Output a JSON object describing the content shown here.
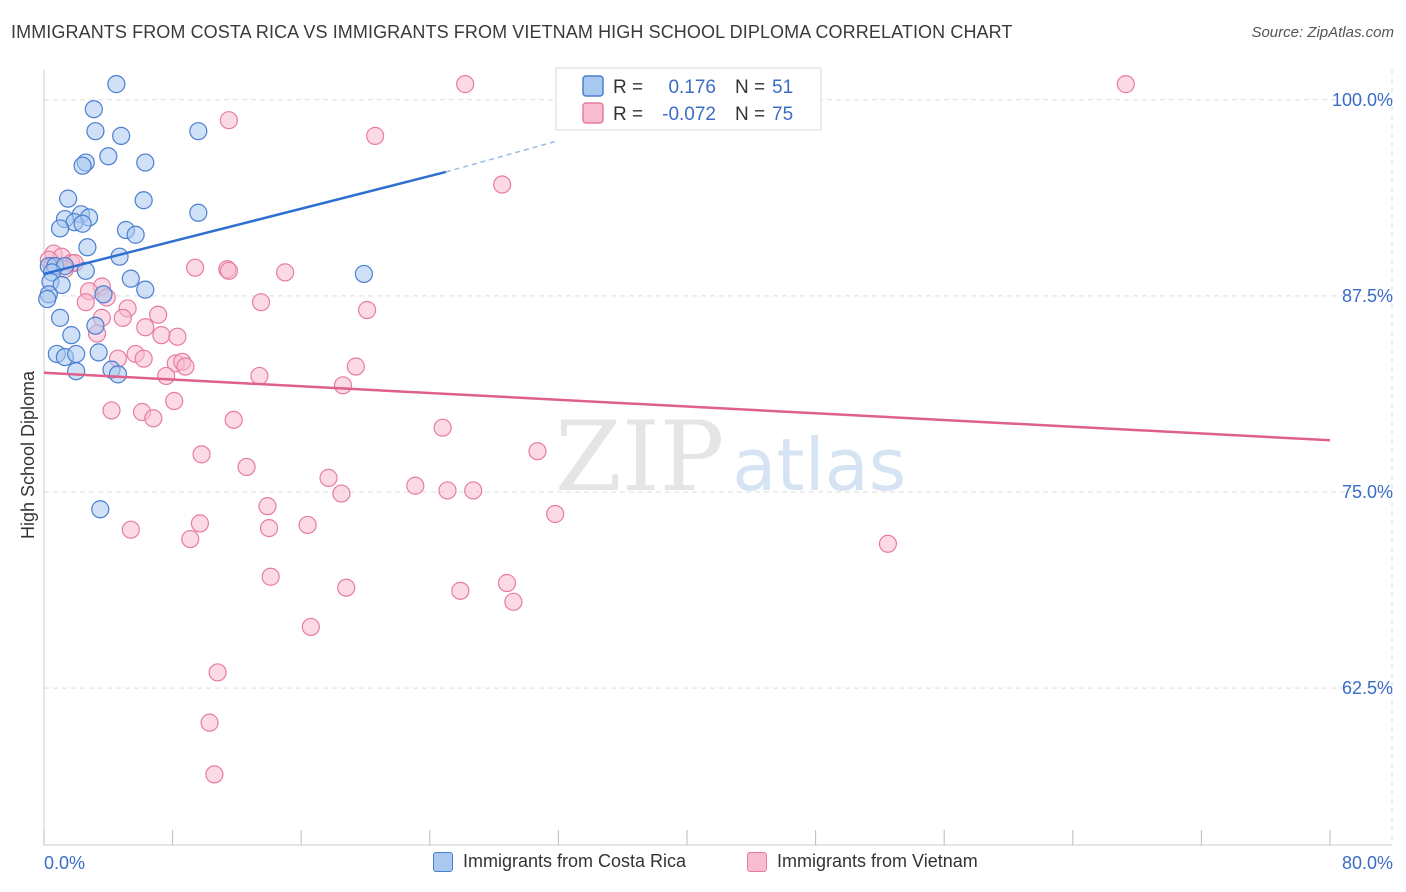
{
  "chart_data": {
    "type": "scatter",
    "title": "IMMIGRANTS FROM COSTA RICA VS IMMIGRANTS FROM VIETNAM HIGH SCHOOL DIPLOMA CORRELATION CHART",
    "source": "Source: ZipAtlas.com",
    "ylabel": "High School Diploma",
    "xlabel": "",
    "xlim": [
      0,
      80
    ],
    "ylim": [
      52.5,
      101.9
    ],
    "x_tick_labels": [
      "0.0%",
      "80.0%"
    ],
    "y_ticks": [
      100.0,
      87.5,
      75.0,
      62.5
    ],
    "y_tick_labels": [
      "100.0%",
      "87.5%",
      "75.0%",
      "62.5%"
    ],
    "watermark": "ZIPatlas",
    "legend": [
      {
        "label": "Immigrants from Costa Rica",
        "r_label": "R =",
        "r_value": "0.176",
        "n_label": "N =",
        "n_value": "51"
      },
      {
        "label": "Immigrants from Vietnam",
        "r_label": "R =",
        "r_value": "-0.072",
        "n_label": "N =",
        "n_value": "75"
      }
    ],
    "colors": {
      "costa_rica_fill": "#a9c8f0",
      "costa_rica_stroke": "#4a7fd0",
      "costa_rica_line": "#2e6fd0",
      "vietnam_fill": "#f8bcd0",
      "vietnam_stroke": "#e87ca0",
      "vietnam_line": "#e0608c",
      "tick_label": "#3b6cc6",
      "grid": "#dddddd"
    },
    "series": [
      {
        "name": "Immigrants from Costa Rica",
        "trend": {
          "x": [
            0.0,
            25.0
          ],
          "y": [
            88.9,
            95.4
          ],
          "dashed_to": [
            32.0,
            97.4
          ]
        },
        "points": [
          [
            4.5,
            101.0
          ],
          [
            3.1,
            99.4
          ],
          [
            3.2,
            98.0
          ],
          [
            4.8,
            97.7
          ],
          [
            9.6,
            98.0
          ],
          [
            4.0,
            96.4
          ],
          [
            2.6,
            96.0
          ],
          [
            6.3,
            96.0
          ],
          [
            2.4,
            95.8
          ],
          [
            6.2,
            93.6
          ],
          [
            1.5,
            93.7
          ],
          [
            9.6,
            92.8
          ],
          [
            1.3,
            92.4
          ],
          [
            2.3,
            92.7
          ],
          [
            2.8,
            92.5
          ],
          [
            1.9,
            92.2
          ],
          [
            2.4,
            92.1
          ],
          [
            1.0,
            91.8
          ],
          [
            5.1,
            91.7
          ],
          [
            5.7,
            91.4
          ],
          [
            2.7,
            90.6
          ],
          [
            4.7,
            90.0
          ],
          [
            0.3,
            89.4
          ],
          [
            0.7,
            89.4
          ],
          [
            1.3,
            89.4
          ],
          [
            0.5,
            89.0
          ],
          [
            2.6,
            89.1
          ],
          [
            0.4,
            88.4
          ],
          [
            1.1,
            88.2
          ],
          [
            19.9,
            88.9
          ],
          [
            5.4,
            88.6
          ],
          [
            6.3,
            87.9
          ],
          [
            3.7,
            87.6
          ],
          [
            0.3,
            87.6
          ],
          [
            0.2,
            87.3
          ],
          [
            1.0,
            86.1
          ],
          [
            3.2,
            85.6
          ],
          [
            1.7,
            85.0
          ],
          [
            3.4,
            83.9
          ],
          [
            0.8,
            83.8
          ],
          [
            1.3,
            83.6
          ],
          [
            2.0,
            83.8
          ],
          [
            4.2,
            82.8
          ],
          [
            2.0,
            82.7
          ],
          [
            4.6,
            82.5
          ],
          [
            3.5,
            73.9
          ]
        ]
      },
      {
        "name": "Immigrants from Vietnam",
        "trend": {
          "x": [
            0.0,
            80.0
          ],
          "y": [
            82.6,
            78.3
          ]
        },
        "points": [
          [
            26.2,
            101.0
          ],
          [
            42.9,
            101.0
          ],
          [
            67.3,
            101.0
          ],
          [
            11.5,
            98.7
          ],
          [
            20.6,
            97.7
          ],
          [
            28.5,
            94.6
          ],
          [
            0.6,
            90.2
          ],
          [
            1.1,
            90.0
          ],
          [
            0.3,
            89.8
          ],
          [
            1.7,
            89.6
          ],
          [
            0.5,
            89.4
          ],
          [
            1.9,
            89.6
          ],
          [
            1.3,
            89.2
          ],
          [
            9.4,
            89.3
          ],
          [
            11.4,
            89.2
          ],
          [
            11.5,
            89.1
          ],
          [
            15.0,
            89.0
          ],
          [
            3.6,
            88.1
          ],
          [
            2.8,
            87.8
          ],
          [
            3.9,
            87.4
          ],
          [
            2.6,
            87.1
          ],
          [
            13.5,
            87.1
          ],
          [
            20.1,
            86.6
          ],
          [
            5.2,
            86.7
          ],
          [
            7.1,
            86.3
          ],
          [
            4.9,
            86.1
          ],
          [
            3.6,
            86.1
          ],
          [
            6.3,
            85.5
          ],
          [
            7.3,
            85.0
          ],
          [
            3.3,
            85.1
          ],
          [
            8.3,
            84.9
          ],
          [
            5.7,
            83.8
          ],
          [
            4.6,
            83.5
          ],
          [
            6.2,
            83.5
          ],
          [
            8.2,
            83.2
          ],
          [
            8.6,
            83.3
          ],
          [
            19.4,
            83.0
          ],
          [
            8.8,
            83.0
          ],
          [
            7.6,
            82.4
          ],
          [
            13.4,
            82.4
          ],
          [
            18.6,
            81.8
          ],
          [
            8.1,
            80.8
          ],
          [
            4.2,
            80.2
          ],
          [
            6.1,
            80.1
          ],
          [
            6.8,
            79.7
          ],
          [
            11.8,
            79.6
          ],
          [
            24.8,
            79.1
          ],
          [
            30.7,
            77.6
          ],
          [
            9.8,
            77.4
          ],
          [
            12.6,
            76.6
          ],
          [
            17.7,
            75.9
          ],
          [
            23.1,
            75.4
          ],
          [
            18.5,
            74.9
          ],
          [
            25.1,
            75.1
          ],
          [
            26.7,
            75.1
          ],
          [
            13.9,
            74.1
          ],
          [
            31.8,
            73.6
          ],
          [
            5.4,
            72.6
          ],
          [
            9.7,
            73.0
          ],
          [
            14.0,
            72.7
          ],
          [
            16.4,
            72.9
          ],
          [
            9.1,
            72.0
          ],
          [
            52.5,
            71.7
          ],
          [
            14.1,
            69.6
          ],
          [
            18.8,
            68.9
          ],
          [
            25.9,
            68.7
          ],
          [
            28.8,
            69.2
          ],
          [
            29.2,
            68.0
          ],
          [
            16.6,
            66.4
          ],
          [
            10.8,
            63.5
          ],
          [
            10.3,
            60.3
          ],
          [
            10.6,
            57.0
          ]
        ]
      }
    ]
  }
}
